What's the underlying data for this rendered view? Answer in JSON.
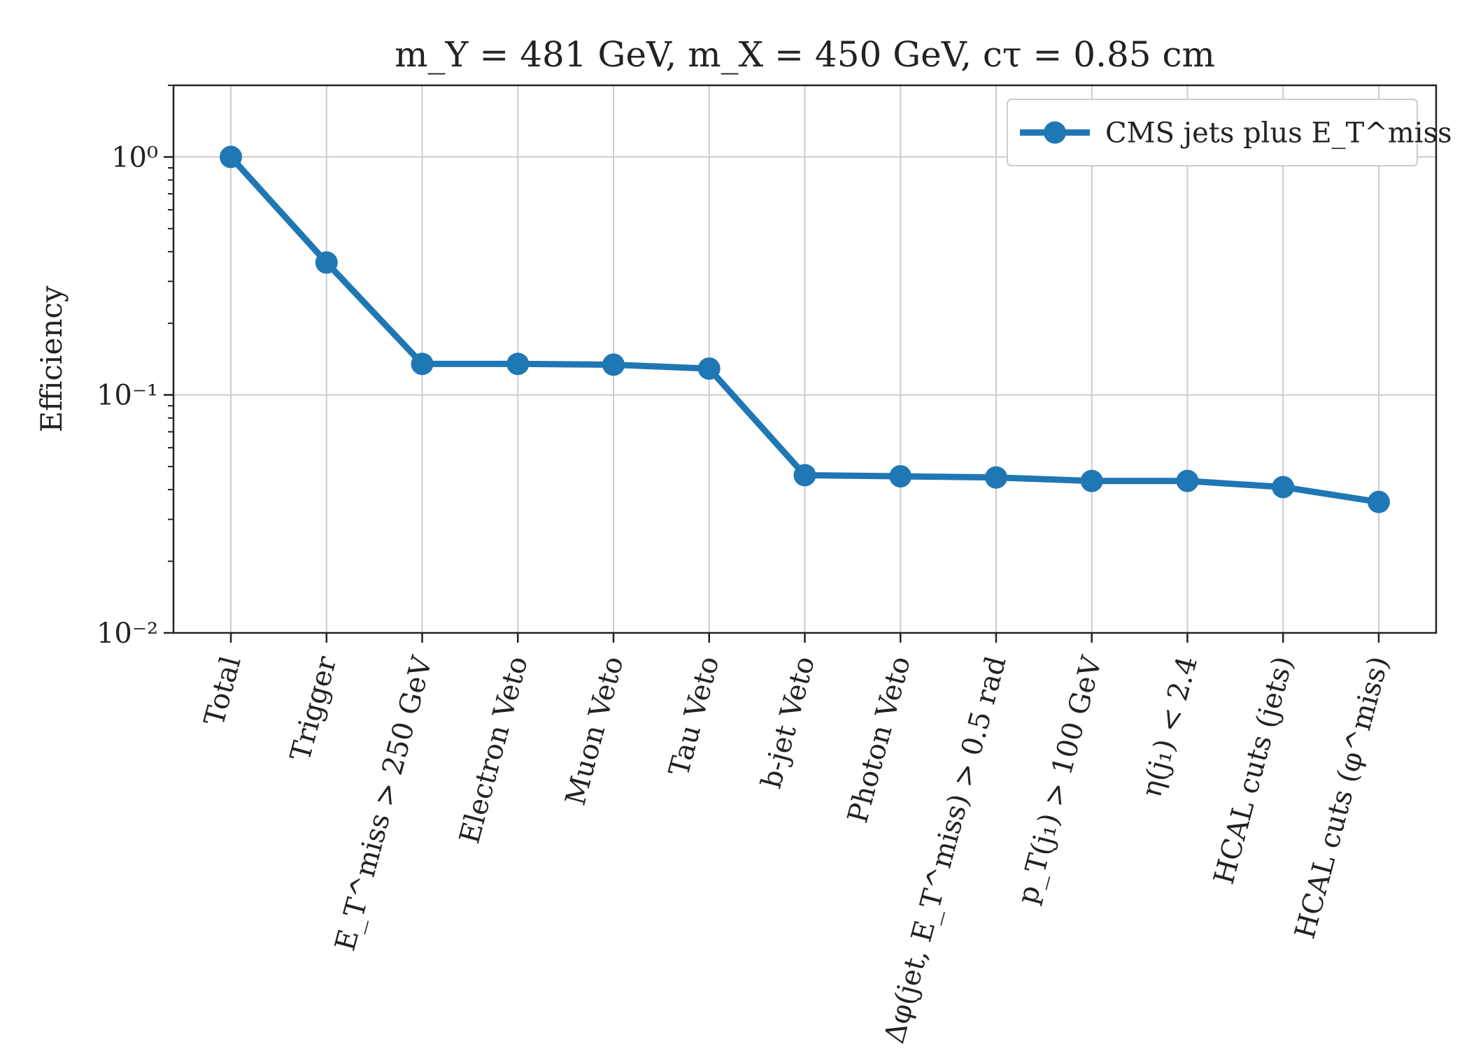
{
  "chart_data": {
    "type": "line",
    "title": "m_Y = 481 GeV, m_X = 450 GeV, cτ = 0.85 cm",
    "xlabel": "",
    "ylabel": "Efficiency",
    "yscale": "log",
    "ylim": [
      0.01,
      2.0
    ],
    "yticks": [
      0.01,
      0.1,
      1.0
    ],
    "ytick_labels": [
      "10⁻²",
      "10⁻¹",
      "10⁰"
    ],
    "grid": true,
    "legend_position": "top-right",
    "categories": [
      "Total",
      "Trigger",
      "E_T^miss > 250 GeV",
      "Electron Veto",
      "Muon Veto",
      "Tau Veto",
      "b-jet Veto",
      "Photon Veto",
      "Δφ(jet, E_T^miss) > 0.5 rad",
      "p_T(j₁) > 100 GeV",
      "η(j₁) < 2.4",
      "HCAL cuts (jets)",
      "HCAL cuts (φ^miss)"
    ],
    "series": [
      {
        "name": "CMS jets plus E_T^miss",
        "color": "#1f77b4",
        "values": [
          1.0,
          0.36,
          0.135,
          0.135,
          0.134,
          0.129,
          0.046,
          0.0455,
          0.045,
          0.0435,
          0.0435,
          0.041,
          0.0355
        ]
      }
    ]
  }
}
